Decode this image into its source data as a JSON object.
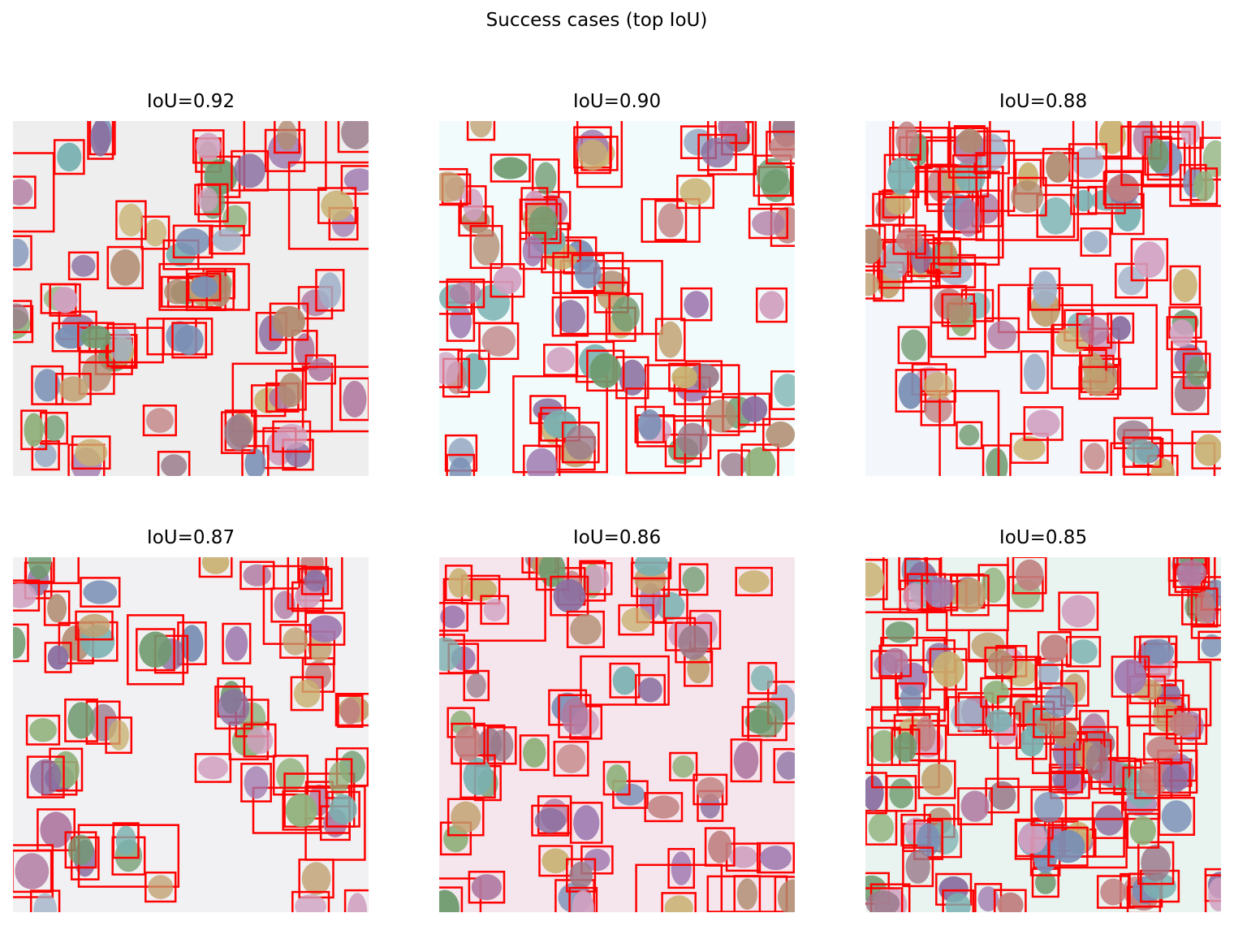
{
  "figure": {
    "title": "Success cases (top IoU)"
  },
  "panels": [
    {
      "label": "IoU=0.92",
      "background": "#eeeeee",
      "seed": 11
    },
    {
      "label": "IoU=0.90",
      "background": "#f2fbfc",
      "seed": 23
    },
    {
      "label": "IoU=0.88",
      "background": "#f3f6fb",
      "seed": 37
    },
    {
      "label": "IoU=0.87",
      "background": "#f1f1f3",
      "seed": 41
    },
    {
      "label": "IoU=0.86",
      "background": "#f5e6ee",
      "seed": 53
    },
    {
      "label": "IoU=0.85",
      "background": "#e9f3ef",
      "seed": 67
    }
  ],
  "overlay": {
    "box_color": "#ff0000",
    "cell_palette": [
      "#b07aa1",
      "#7a8fb5",
      "#9a7a8a",
      "#8fb07a",
      "#c0a070",
      "#7ab0b0",
      "#a07ab0",
      "#c08080",
      "#6f9a6f",
      "#8a6fa0",
      "#b08a6f",
      "#d0a0c0",
      "#9fb0c8",
      "#c8b070"
    ]
  }
}
